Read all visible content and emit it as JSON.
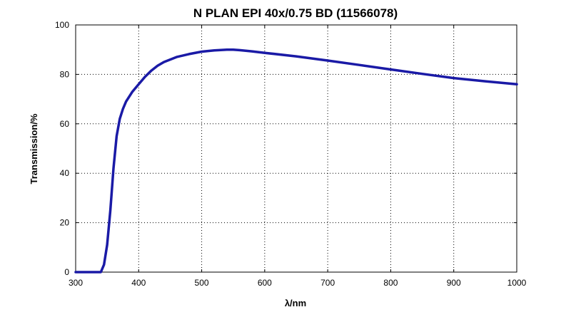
{
  "chart_data": {
    "type": "line",
    "title": "N PLAN EPI 40x/0.75 BD (11566078)",
    "xlabel": "λ/nm",
    "ylabel": "Transmission/%",
    "xlim": [
      300,
      1000
    ],
    "ylim": [
      0,
      100
    ],
    "xticks": [
      300,
      400,
      500,
      600,
      700,
      800,
      900,
      1000
    ],
    "yticks": [
      0,
      20,
      40,
      60,
      80,
      100
    ],
    "grid": true,
    "legend": "none",
    "series_color": "#1a1aa6",
    "series": [
      {
        "x": [
          300,
          340,
          345,
          350,
          355,
          360,
          365,
          370,
          375,
          380,
          390,
          400,
          410,
          420,
          430,
          440,
          460,
          480,
          500,
          520,
          540,
          550,
          560,
          580,
          600,
          650,
          700,
          750,
          800,
          850,
          900,
          950,
          1000
        ],
        "y": [
          0,
          0,
          3,
          11,
          25,
          42,
          55,
          62,
          66,
          69,
          73,
          76,
          79,
          81.5,
          83.5,
          85,
          87,
          88.2,
          89.2,
          89.7,
          90,
          90,
          89.8,
          89.3,
          88.7,
          87.3,
          85.6,
          83.8,
          82,
          80.2,
          78.5,
          77.2,
          76
        ]
      }
    ]
  }
}
